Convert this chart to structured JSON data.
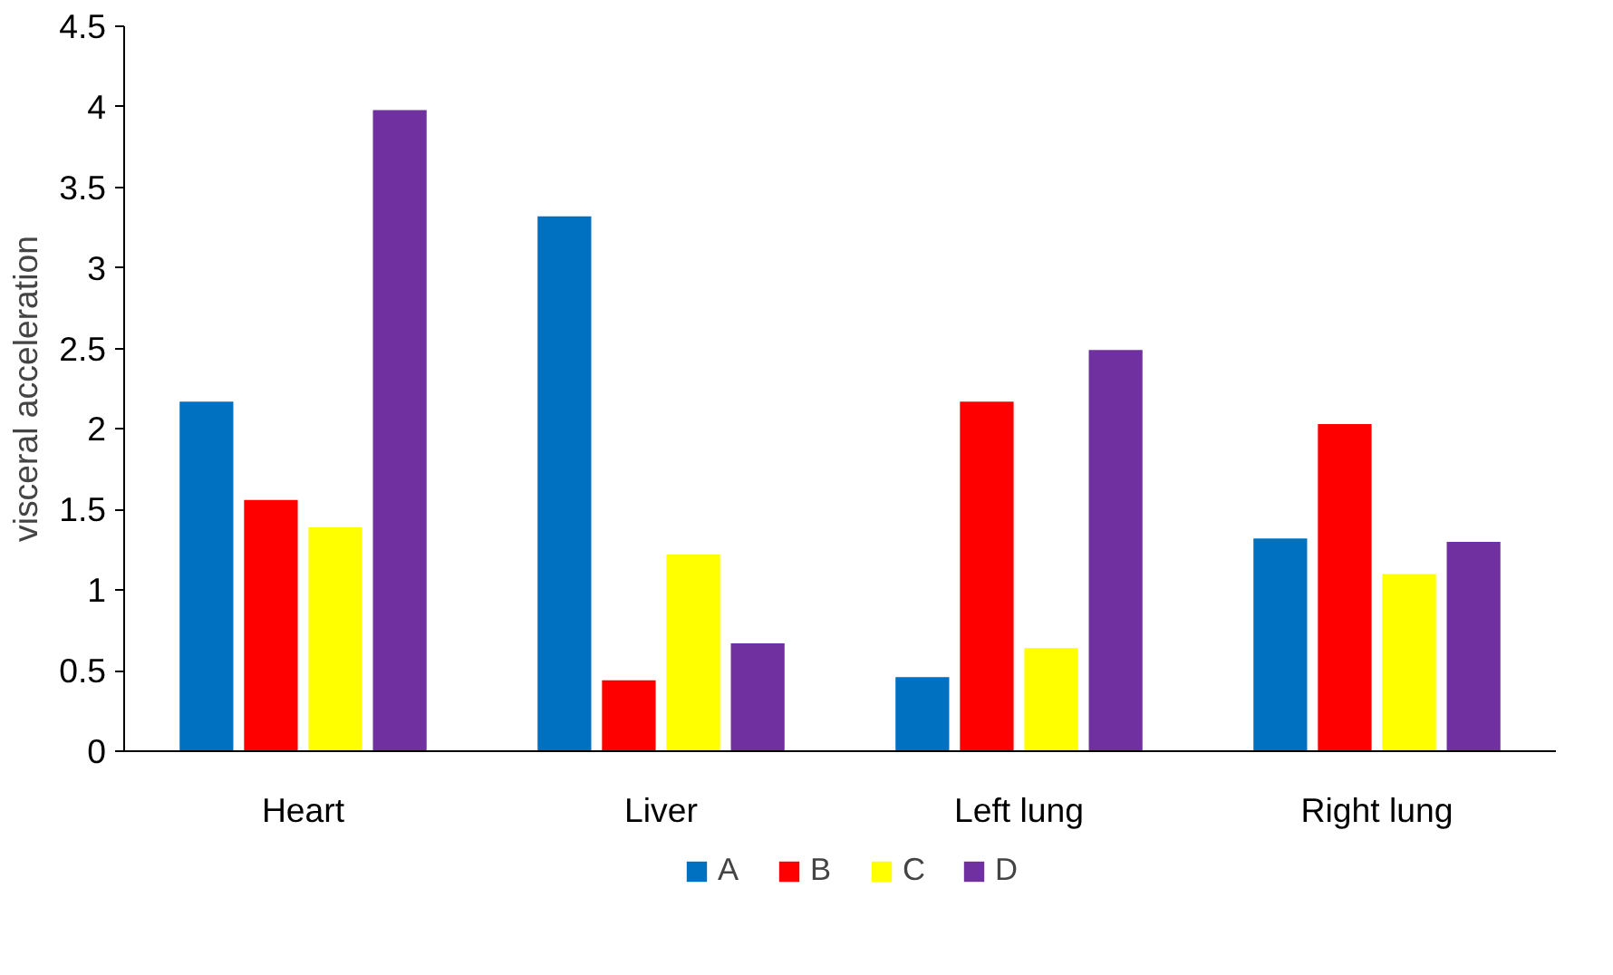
{
  "chart_data": {
    "type": "bar",
    "ylabel": "visceral acceleration",
    "categories": [
      "Heart",
      "Liver",
      "Left lung",
      "Right lung"
    ],
    "series": [
      {
        "name": "A",
        "color": "#0070c0",
        "values": [
          2.17,
          3.32,
          0.46,
          1.32
        ]
      },
      {
        "name": "B",
        "color": "#ff0000",
        "values": [
          1.56,
          0.44,
          2.17,
          2.03
        ]
      },
      {
        "name": "C",
        "color": "#ffff00",
        "values": [
          1.39,
          1.22,
          0.64,
          1.1
        ]
      },
      {
        "name": "D",
        "color": "#7030a0",
        "values": [
          3.98,
          0.67,
          2.49,
          1.3
        ]
      }
    ],
    "ylim": [
      0,
      4.5
    ],
    "yticks": [
      0,
      {
        "value": 0.5,
        "label": "0.5"
      },
      1,
      {
        "value": 1.5,
        "label": "1.5"
      },
      2,
      {
        "value": 2.5,
        "label": "2.5"
      },
      3,
      {
        "value": 3.5,
        "label": "3.5"
      },
      4,
      {
        "value": 4.5,
        "label": "4.5"
      }
    ],
    "grid": false,
    "legend": "bottom"
  }
}
